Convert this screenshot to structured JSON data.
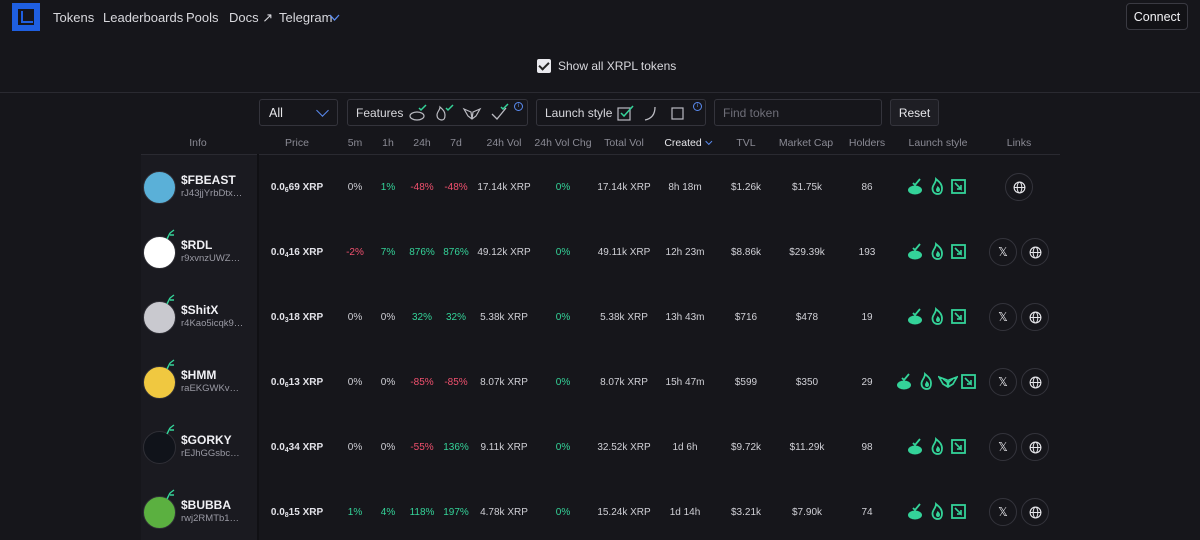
{
  "nav": {
    "links": [
      "Tokens",
      "Leaderboards",
      "Pools",
      "Docs ↗",
      "Telegram"
    ],
    "connect_label": "Connect"
  },
  "filter_bar": {
    "show_all_label": "Show all XRPL tokens",
    "show_all_checked": true,
    "select_value": "All",
    "features_label": "Features",
    "launch_style_label": "Launch style",
    "search_placeholder": "Find token",
    "reset_label": "Reset"
  },
  "table": {
    "headers": [
      "Info",
      "Price",
      "5m",
      "1h",
      "24h",
      "7d",
      "24h Vol",
      "24h Vol Chg",
      "Total Vol",
      "Created",
      "TVL",
      "Market Cap",
      "Holders",
      "Launch style",
      "Links"
    ],
    "sorted_by": "Created",
    "rows": [
      {
        "symbol": "$FBEAST",
        "address": "rJ43jjYrbDtx…",
        "price_pre": "0.0",
        "price_sub": "6",
        "price_post": "69 XRP",
        "m5": "0%",
        "h1": "1%",
        "h24": "-48%",
        "d7": "-48%",
        "vol24": "17.14k XRP",
        "volchg": "0%",
        "total": "17.14k XRP",
        "created": "8h 18m",
        "tvl": "$1.26k",
        "mcap": "$1.75k",
        "holders": "86",
        "launch_icons": [
          "pool-icon",
          "flame-icon",
          "launch-box-icon"
        ],
        "links": [
          "website-icon"
        ],
        "avatar_color": "#5ab0d8"
      },
      {
        "symbol": "$RDL",
        "address": "r9xvnzUWZ…",
        "price_pre": "0.0",
        "price_sub": "4",
        "price_post": "16 XRP",
        "m5": "-2%",
        "h1": "7%",
        "h24": "876%",
        "d7": "876%",
        "vol24": "49.12k XRP",
        "volchg": "0%",
        "total": "49.11k XRP",
        "created": "12h 23m",
        "tvl": "$8.86k",
        "mcap": "$29.39k",
        "holders": "193",
        "launch_icons": [
          "pool-icon",
          "flame-icon",
          "launch-box-icon"
        ],
        "links": [
          "x-icon",
          "website-icon"
        ],
        "avatar_color": "#ffffff"
      },
      {
        "symbol": "$ShitX",
        "address": "r4Kao5icqk9…",
        "price_pre": "0.0",
        "price_sub": "3",
        "price_post": "18 XRP",
        "m5": "0%",
        "h1": "0%",
        "h24": "32%",
        "d7": "32%",
        "vol24": "5.38k XRP",
        "volchg": "0%",
        "total": "5.38k XRP",
        "created": "13h 43m",
        "tvl": "$716",
        "mcap": "$478",
        "holders": "19",
        "launch_icons": [
          "pool-icon",
          "flame-icon",
          "launch-box-icon"
        ],
        "links": [
          "x-icon",
          "website-icon"
        ],
        "avatar_color": "#c9c9cf"
      },
      {
        "symbol": "$HMM",
        "address": "raEKGWKv…",
        "price_pre": "0.0",
        "price_sub": "6",
        "price_post": "13 XRP",
        "m5": "0%",
        "h1": "0%",
        "h24": "-85%",
        "d7": "-85%",
        "vol24": "8.07k XRP",
        "volchg": "0%",
        "total": "8.07k XRP",
        "created": "15h 47m",
        "tvl": "$599",
        "mcap": "$350",
        "holders": "29",
        "launch_icons": [
          "pool-icon",
          "flame-icon",
          "wings-icon",
          "launch-box-icon"
        ],
        "links": [
          "x-icon",
          "website-icon"
        ],
        "avatar_color": "#f0c840"
      },
      {
        "symbol": "$GORKY",
        "address": "rEJhGGsbc…",
        "price_pre": "0.0",
        "price_sub": "4",
        "price_post": "34 XRP",
        "m5": "0%",
        "h1": "0%",
        "h24": "-55%",
        "d7": "136%",
        "vol24": "9.11k XRP",
        "volchg": "0%",
        "total": "32.52k XRP",
        "created": "1d 6h",
        "tvl": "$9.72k",
        "mcap": "$11.29k",
        "holders": "98",
        "launch_icons": [
          "pool-icon",
          "flame-icon",
          "launch-box-icon"
        ],
        "links": [
          "x-icon",
          "website-icon"
        ],
        "avatar_color": "#10131a"
      },
      {
        "symbol": "$BUBBA",
        "address": "rwj2RMTb1…",
        "price_pre": "0.0",
        "price_sub": "8",
        "price_post": "15 XRP",
        "m5": "1%",
        "h1": "4%",
        "h24": "118%",
        "d7": "197%",
        "vol24": "4.78k XRP",
        "volchg": "0%",
        "total": "15.24k XRP",
        "created": "1d 14h",
        "tvl": "$3.21k",
        "mcap": "$7.90k",
        "holders": "74",
        "launch_icons": [
          "pool-icon",
          "flame-icon",
          "launch-box-icon"
        ],
        "links": [
          "x-icon",
          "website-icon"
        ],
        "avatar_color": "#5bb040"
      }
    ]
  },
  "colors": {
    "accent": "#1f5fe0",
    "positive": "#34d399",
    "negative": "#f0506e",
    "background": "#16161b"
  }
}
